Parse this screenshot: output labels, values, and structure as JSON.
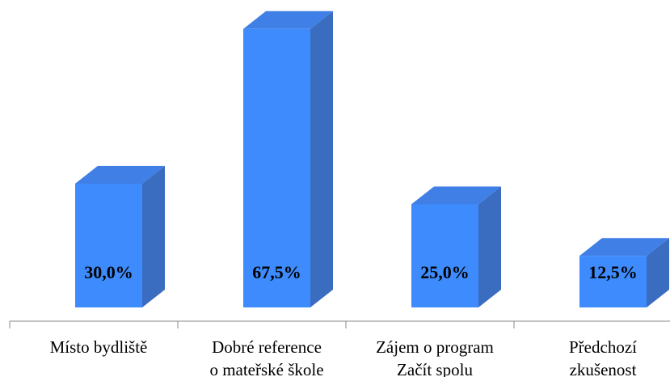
{
  "chart_data": {
    "type": "bar3d",
    "categories": [
      [
        "Místo bydliště"
      ],
      [
        "Dobré reference",
        "o mateřské škole"
      ],
      [
        "Zájem o program",
        "Začít spolu"
      ],
      [
        "Předchozí",
        "zkušenost"
      ]
    ],
    "values": [
      30,
      67.5,
      25,
      12.5
    ],
    "value_labels": [
      "30,0%",
      "67,5%",
      "25,0%",
      "12,5%"
    ],
    "color": "#3d8bfd"
  }
}
